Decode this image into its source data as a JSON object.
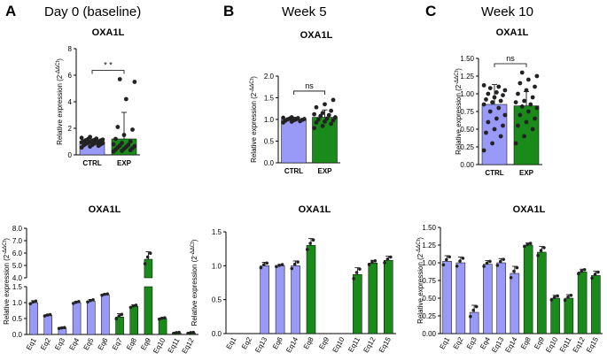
{
  "colors": {
    "ctrl": "#9999f7",
    "exp": "#1a8a1a",
    "point": "#222222",
    "axis": "#000000"
  },
  "panels": [
    {
      "letter": "A",
      "heading": "Day 0 (baseline)"
    },
    {
      "letter": "B",
      "heading": "Week 5"
    },
    {
      "letter": "C",
      "heading": "Week 10"
    }
  ],
  "chart_data": [
    {
      "type": "bar",
      "panel": "A",
      "title": "OXA1L",
      "ylabel": "Relative expression (2^-ΔΔCt)",
      "ylim": [
        0,
        8
      ],
      "yticks": [
        0,
        2,
        4,
        6,
        8
      ],
      "categories": [
        "CTRL",
        "EXP"
      ],
      "values": [
        1.0,
        1.2
      ],
      "errors": [
        0.2,
        2.0
      ],
      "points": [
        [
          0.55,
          0.62,
          0.68,
          0.72,
          0.75,
          0.78,
          0.82,
          0.85,
          0.88,
          0.9,
          0.92,
          0.95,
          0.98,
          1.0,
          1.02,
          1.05,
          1.08,
          1.1,
          1.12,
          1.15,
          1.18,
          1.22,
          1.28,
          1.35
        ],
        [
          0.25,
          0.3,
          0.35,
          0.4,
          0.45,
          0.5,
          0.55,
          0.6,
          0.65,
          0.7,
          0.75,
          0.8,
          0.9,
          1.0,
          1.2,
          1.5,
          1.9,
          2.1,
          4.2,
          5.5,
          5.7
        ]
      ],
      "significance": "* *"
    },
    {
      "type": "bar",
      "panel": "B",
      "title": "OXA1L",
      "ylabel": "Relative expression (2^-ΔΔCt)",
      "ylim": [
        0,
        2.0
      ],
      "yticks": [
        0.0,
        0.5,
        1.0,
        1.5,
        2.0
      ],
      "categories": [
        "CTRL",
        "EXP"
      ],
      "values": [
        1.0,
        1.05
      ],
      "errors": [
        0.05,
        0.17
      ],
      "points": [
        [
          0.93,
          0.95,
          0.96,
          0.97,
          0.98,
          0.99,
          1.0,
          1.0,
          1.01,
          1.02,
          1.03,
          1.04,
          1.05
        ],
        [
          0.8,
          0.85,
          0.9,
          0.93,
          0.95,
          0.98,
          1.0,
          1.02,
          1.05,
          1.08,
          1.1,
          1.12,
          1.15,
          1.2,
          1.28,
          1.35,
          1.45
        ]
      ],
      "significance": "ns"
    },
    {
      "type": "bar",
      "panel": "C",
      "title": "OXA1L",
      "ylabel": "Relative expression (2^-ΔΔCt)",
      "ylim": [
        0,
        1.5
      ],
      "yticks": [
        0.0,
        0.25,
        0.5,
        0.75,
        1.0,
        1.25,
        1.5
      ],
      "categories": [
        "CTRL",
        "EXP"
      ],
      "values": [
        0.85,
        0.83
      ],
      "errors": [
        0.28,
        0.2
      ],
      "points": [
        [
          0.2,
          0.3,
          0.4,
          0.45,
          0.5,
          0.55,
          0.6,
          0.65,
          0.7,
          0.75,
          0.8,
          0.85,
          0.88,
          0.9,
          0.92,
          0.95,
          0.98,
          1.0,
          1.02,
          1.05,
          1.08,
          1.1,
          1.12
        ],
        [
          0.3,
          0.4,
          0.5,
          0.55,
          0.6,
          0.65,
          0.7,
          0.75,
          0.8,
          0.82,
          0.85,
          0.88,
          0.9,
          0.95,
          1.0,
          1.05,
          1.1,
          1.15,
          1.2,
          1.25,
          1.3
        ]
      ],
      "significance": "ns"
    },
    {
      "type": "bar",
      "panel": "A-bottom",
      "title": "OXA1L",
      "ylabel": "Relative expression (2^-ΔΔCt)",
      "ylim": [
        0,
        8
      ],
      "axis_break": [
        1.5,
        4
      ],
      "yticks": [
        0.0,
        0.5,
        1.0,
        1.5,
        4,
        5,
        6,
        7,
        8
      ],
      "categories": [
        "Eq1",
        "Eq2",
        "Eq3",
        "Eq4",
        "Eq5",
        "Eq6",
        "Eq7",
        "Eq8",
        "Eq9",
        "Eq10",
        "Eq11",
        "Eq12"
      ],
      "groups": [
        "ctrl",
        "ctrl",
        "ctrl",
        "ctrl",
        "ctrl",
        "ctrl",
        "exp",
        "exp",
        "exp",
        "exp",
        "exp",
        "exp"
      ],
      "values": [
        1.0,
        0.6,
        0.2,
        1.0,
        1.05,
        1.25,
        0.55,
        0.88,
        5.5,
        0.5,
        0.05,
        0.05
      ],
      "errors": [
        0.06,
        0.03,
        0.02,
        0.04,
        0.05,
        0.03,
        0.1,
        0.05,
        0.6,
        0.03,
        0.02,
        0.02
      ]
    },
    {
      "type": "bar",
      "panel": "B-bottom",
      "title": "OXA1L",
      "ylabel": "Relative expression (2^-ΔΔCt)",
      "ylim": [
        0,
        1.5
      ],
      "yticks": [
        0.0,
        0.5,
        1.0,
        1.5
      ],
      "categories": [
        "Eq1",
        "Eq2",
        "Eq13",
        "Eq6",
        "Eq14",
        "Eq8",
        "Eq9",
        "Eq10",
        "Eq11",
        "Eq12",
        "Eq15"
      ],
      "groups": [
        "ctrl",
        "ctrl",
        "ctrl",
        "ctrl",
        "ctrl",
        "exp",
        "exp",
        "exp",
        "exp",
        "exp",
        "exp"
      ],
      "values": [
        0,
        0,
        1.0,
        1.0,
        1.0,
        1.3,
        0,
        0,
        0.87,
        1.04,
        1.08
      ],
      "errors": [
        0,
        0,
        0.05,
        0.02,
        0.07,
        0.1,
        0,
        0,
        0.1,
        0.04,
        0.06
      ]
    },
    {
      "type": "bar",
      "panel": "C-bottom",
      "title": "OXA1L",
      "ylabel": "Relative expression (2^-ΔΔCt)",
      "ylim": [
        0,
        1.5
      ],
      "yticks": [
        0.0,
        0.25,
        0.5,
        0.75,
        1.0,
        1.25,
        1.5
      ],
      "categories": [
        "Eq1",
        "Eq2",
        "Eq3",
        "Eq4",
        "Eq13",
        "Eq14",
        "Eq8",
        "Eq9",
        "Eq10",
        "Eq11",
        "Eq12",
        "Eq15"
      ],
      "groups": [
        "ctrl",
        "ctrl",
        "ctrl",
        "ctrl",
        "ctrl",
        "ctrl",
        "exp",
        "exp",
        "exp",
        "exp",
        "exp",
        "exp"
      ],
      "values": [
        1.02,
        1.0,
        0.3,
        0.98,
        1.0,
        0.85,
        1.25,
        1.15,
        0.5,
        0.5,
        0.87,
        0.82
      ],
      "errors": [
        0.08,
        0.08,
        0.1,
        0.05,
        0.06,
        0.1,
        0.03,
        0.08,
        0.04,
        0.05,
        0.04,
        0.06
      ]
    }
  ]
}
